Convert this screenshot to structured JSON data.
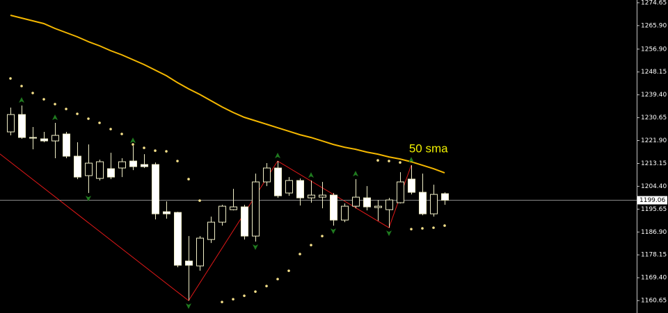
{
  "chart_data": {
    "type": "candlestick",
    "ylim": [
      1155.9,
      1275.7
    ],
    "xlim": [
      -0.94,
      56.25
    ],
    "yticks": [
      1274.65,
      {
        "value": 1265.9,
        "label": "1265.90"
      },
      {
        "value": 1256.9,
        "label": "1256.90"
      },
      1248.15,
      {
        "value": 1239.4,
        "label": "1239.40"
      },
      1230.65,
      {
        "value": 1221.9,
        "label": "1221.90"
      },
      1213.15,
      {
        "value": 1204.4,
        "label": "1204.40"
      },
      1195.65,
      {
        "value": 1186.9,
        "label": "1186.90"
      },
      1178.15,
      {
        "value": 1169.4,
        "label": "1169.40"
      },
      1160.65
    ],
    "current_price": 1199.06,
    "annotation": "50 sma",
    "bull_color": "#000000",
    "bear_color": "#ffffff",
    "wick_color": "#f2f0c8",
    "candles": {
      "open": [
        1225.22,
        1231.86,
        1223.09,
        1222.56,
        1221.76,
        1224.42,
        1215.92,
        1208.48,
        1207.41,
        1211.13,
        1211.4,
        1214.06,
        1212.73,
        1212.73,
        1194.66,
        1194.39,
        1175.79,
        1173.93,
        1184.03,
        1190.67,
        1195.45,
        1196.52,
        1185.35,
        1206.08,
        1211.4,
        1201.83,
        1206.61,
        1199.97,
        1200.24,
        1201.03,
        1191.47,
        1196.78,
        1199.97,
        1196.25,
        1195.45,
        1198.11,
        1207.15,
        1202.1,
        1193.86,
        1201.57
      ],
      "high": [
        1234.52,
        1235.32,
        1227.08,
        1225.22,
        1228.67,
        1225.22,
        1221.23,
        1220.43,
        1214.59,
        1217.24,
        1215.12,
        1219.9,
        1216.71,
        1213.52,
        1198.64,
        1194.66,
        1185.35,
        1185.35,
        1192.8,
        1197.31,
        1203.43,
        1197.31,
        1209.27,
        1213.26,
        1214.06,
        1207.94,
        1207.41,
        1206.61,
        1206.08,
        1201.83,
        1197.85,
        1207.15,
        1204.49,
        1199.17,
        1199.97,
        1209.8,
        1212.46,
        1209.27,
        1205.02,
        1202.1
      ],
      "low": [
        1223.89,
        1222.56,
        1218.57,
        1221.23,
        1215.12,
        1215.12,
        1207.15,
        1201.83,
        1206.61,
        1207.15,
        1207.94,
        1210.6,
        1211.4,
        1191.73,
        1192.0,
        1173.4,
        1160.64,
        1172.07,
        1182.7,
        1189.34,
        1195.19,
        1184.03,
        1183.23,
        1204.49,
        1199.97,
        1200.77,
        1197.05,
        1198.11,
        1195.98,
        1189.34,
        1190.67,
        1195.98,
        1195.19,
        1191.2,
        1188.54,
        1197.85,
        1201.3,
        1193.33,
        1192.8,
        1197.31
      ],
      "close": [
        1231.86,
        1223.09,
        1222.83,
        1221.76,
        1223.89,
        1215.92,
        1207.94,
        1213.26,
        1213.79,
        1207.94,
        1213.79,
        1211.93,
        1211.93,
        1193.86,
        1193.86,
        1174.19,
        1174.19,
        1184.56,
        1190.67,
        1196.78,
        1196.52,
        1185.35,
        1206.08,
        1211.4,
        1200.77,
        1206.61,
        1199.97,
        1201.03,
        1201.03,
        1191.47,
        1196.78,
        1200.24,
        1196.52,
        1196.78,
        1199.17,
        1206.08,
        1202.1,
        1193.86,
        1201.3,
        1199.06
      ]
    },
    "sma": {
      "color": "#f5b800",
      "values": [
        1269.86,
        1268.8,
        1267.74,
        1266.67,
        1264.81,
        1263.22,
        1261.63,
        1259.76,
        1258.17,
        1256.31,
        1254.72,
        1252.86,
        1250.99,
        1248.87,
        1246.74,
        1244.09,
        1241.69,
        1239.57,
        1237.18,
        1234.78,
        1232.66,
        1230.8,
        1229.47,
        1228.14,
        1226.81,
        1225.48,
        1224.15,
        1223.09,
        1221.76,
        1220.43,
        1219.37,
        1218.57,
        1217.51,
        1216.71,
        1215.65,
        1214.85,
        1213.79,
        1212.46,
        1211.13,
        1209.53
      ]
    },
    "sar": {
      "color": "#f5e08a",
      "values": [
        1245.68,
        1242.76,
        1240.1,
        1237.71,
        1235.85,
        1233.99,
        1232.13,
        1230.27,
        1228.67,
        1226.28,
        1224.42,
        1220.43,
        1219.1,
        1218.04,
        1217.78,
        1214.06,
        1207.15,
        1198.91,
        null,
        1160.11,
        1161.17,
        1162.5,
        1164.09,
        1166.22,
        1168.88,
        1172.07,
        1178.45,
        1181.9,
        1185.35,
        null,
        null,
        null,
        null,
        1214.32,
        1214.06,
        1213.52,
        1188.01,
        1188.28,
        1188.54,
        1189.34
      ]
    },
    "zigzag": {
      "color": "#e01818",
      "x": [
        -1,
        16,
        24,
        34,
        36
      ],
      "values": [
        1216.98,
        1160.64,
        1214.06,
        1188.54,
        1212.46
      ]
    },
    "fractals": {
      "color": "#1f7a1f",
      "up": [
        1,
        4,
        11,
        24,
        27,
        31,
        36
      ],
      "down": [
        7,
        16,
        22,
        29,
        34
      ]
    }
  }
}
